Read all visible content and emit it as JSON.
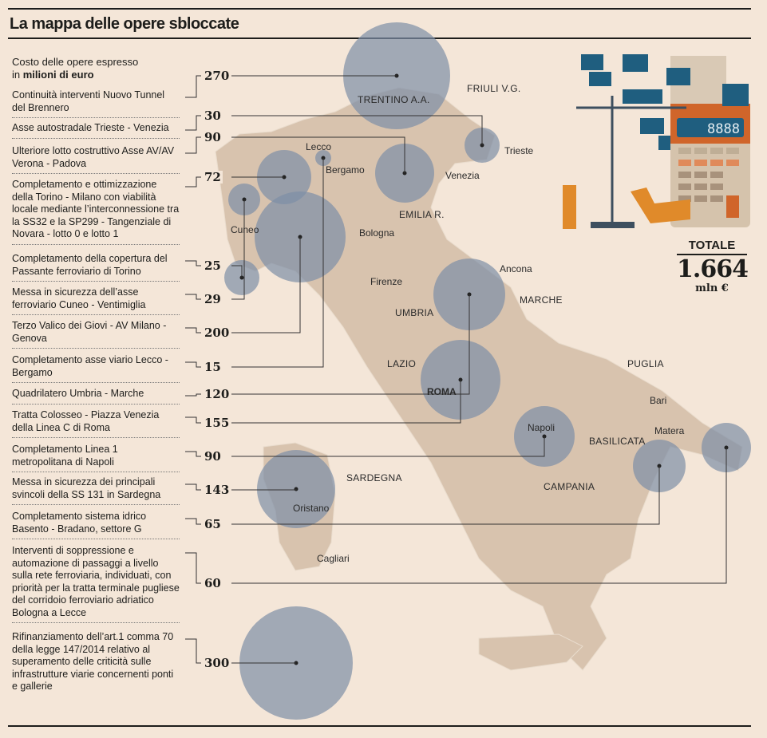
{
  "title": "La mappa delle opere sbloccate",
  "legend": {
    "line1": "Costo delle opere espresso",
    "line2_prefix": "in ",
    "line2_bold": "milioni di euro"
  },
  "projects": [
    {
      "name": "Continuità interventi Nuovo Tunnel del Brennero",
      "value": "270"
    },
    {
      "name": "Asse autostradale Trieste - Venezia",
      "value": "30"
    },
    {
      "name": "Ulteriore lotto costruttivo Asse AV/AV Verona - Padova",
      "value": "90"
    },
    {
      "name": "Completamento e ottimizzazione della Torino - Milano con viabilità locale mediante l’interconnessione tra la SS32 e la SP299 - Tangenziale di Novara - lotto 0 e lotto 1",
      "value": "72"
    },
    {
      "name": "Completamento della copertura del Passante ferroviario di Torino",
      "value": "25"
    },
    {
      "name": "Messa in sicurezza dell’asse ferroviario Cuneo - Ventimiglia",
      "value": "29"
    },
    {
      "name": "Terzo Valico dei Giovi - AV Milano - Genova",
      "value": "200"
    },
    {
      "name": "Completamento asse viario Lecco - Bergamo",
      "value": "15"
    },
    {
      "name": "Quadrilatero Umbria - Marche",
      "value": "120"
    },
    {
      "name": "Tratta Colosseo - Piazza Venezia della Linea C di Roma",
      "value": "155"
    },
    {
      "name": "Completamento Linea 1 metropolitana di Napoli",
      "value": "90"
    },
    {
      "name": "Messa in sicurezza dei principali svincoli della SS 131 in Sardegna",
      "value": "143"
    },
    {
      "name": "Completamento sistema idrico Basento - Bradano, settore G",
      "value": "65"
    },
    {
      "name": "Interventi di soppressione e automazione di passaggi a livello sulla rete ferroviaria, individuati, con priorità per la tratta terminale pugliese del corridoio ferroviario adriatico Bologna a Lecce",
      "value": "60"
    },
    {
      "name": "Rifinanziamento dell’art.1 comma 70 della legge 147/2014 relativo al superamento delle criticità sulle infrastrutture viarie concernenti ponti e gallerie",
      "value": "300"
    }
  ],
  "regions": [
    "TRENTINO A.A.",
    "FRIULI V.G.",
    "EMILIA R.",
    "MARCHE",
    "UMBRIA",
    "LAZIO",
    "PUGLIA",
    "BASILICATA",
    "CAMPANIA",
    "SARDEGNA"
  ],
  "cities": [
    "Trieste",
    "Venezia",
    "Lecco",
    "Bergamo",
    "Cuneo",
    "Bologna",
    "Firenze",
    "Ancona",
    "ROMA",
    "Bari",
    "Napoli",
    "Matera",
    "Oristano",
    "Cagliari"
  ],
  "illustration": {
    "calculator_display": "8888"
  },
  "total": {
    "label": "TOTALE",
    "value": "1.664",
    "unit": "mln €"
  },
  "colors": {
    "background": "#f4e6d8",
    "land": "#d8c3ae",
    "bubble": "#7e8ea6",
    "text": "#1d1d1b"
  }
}
